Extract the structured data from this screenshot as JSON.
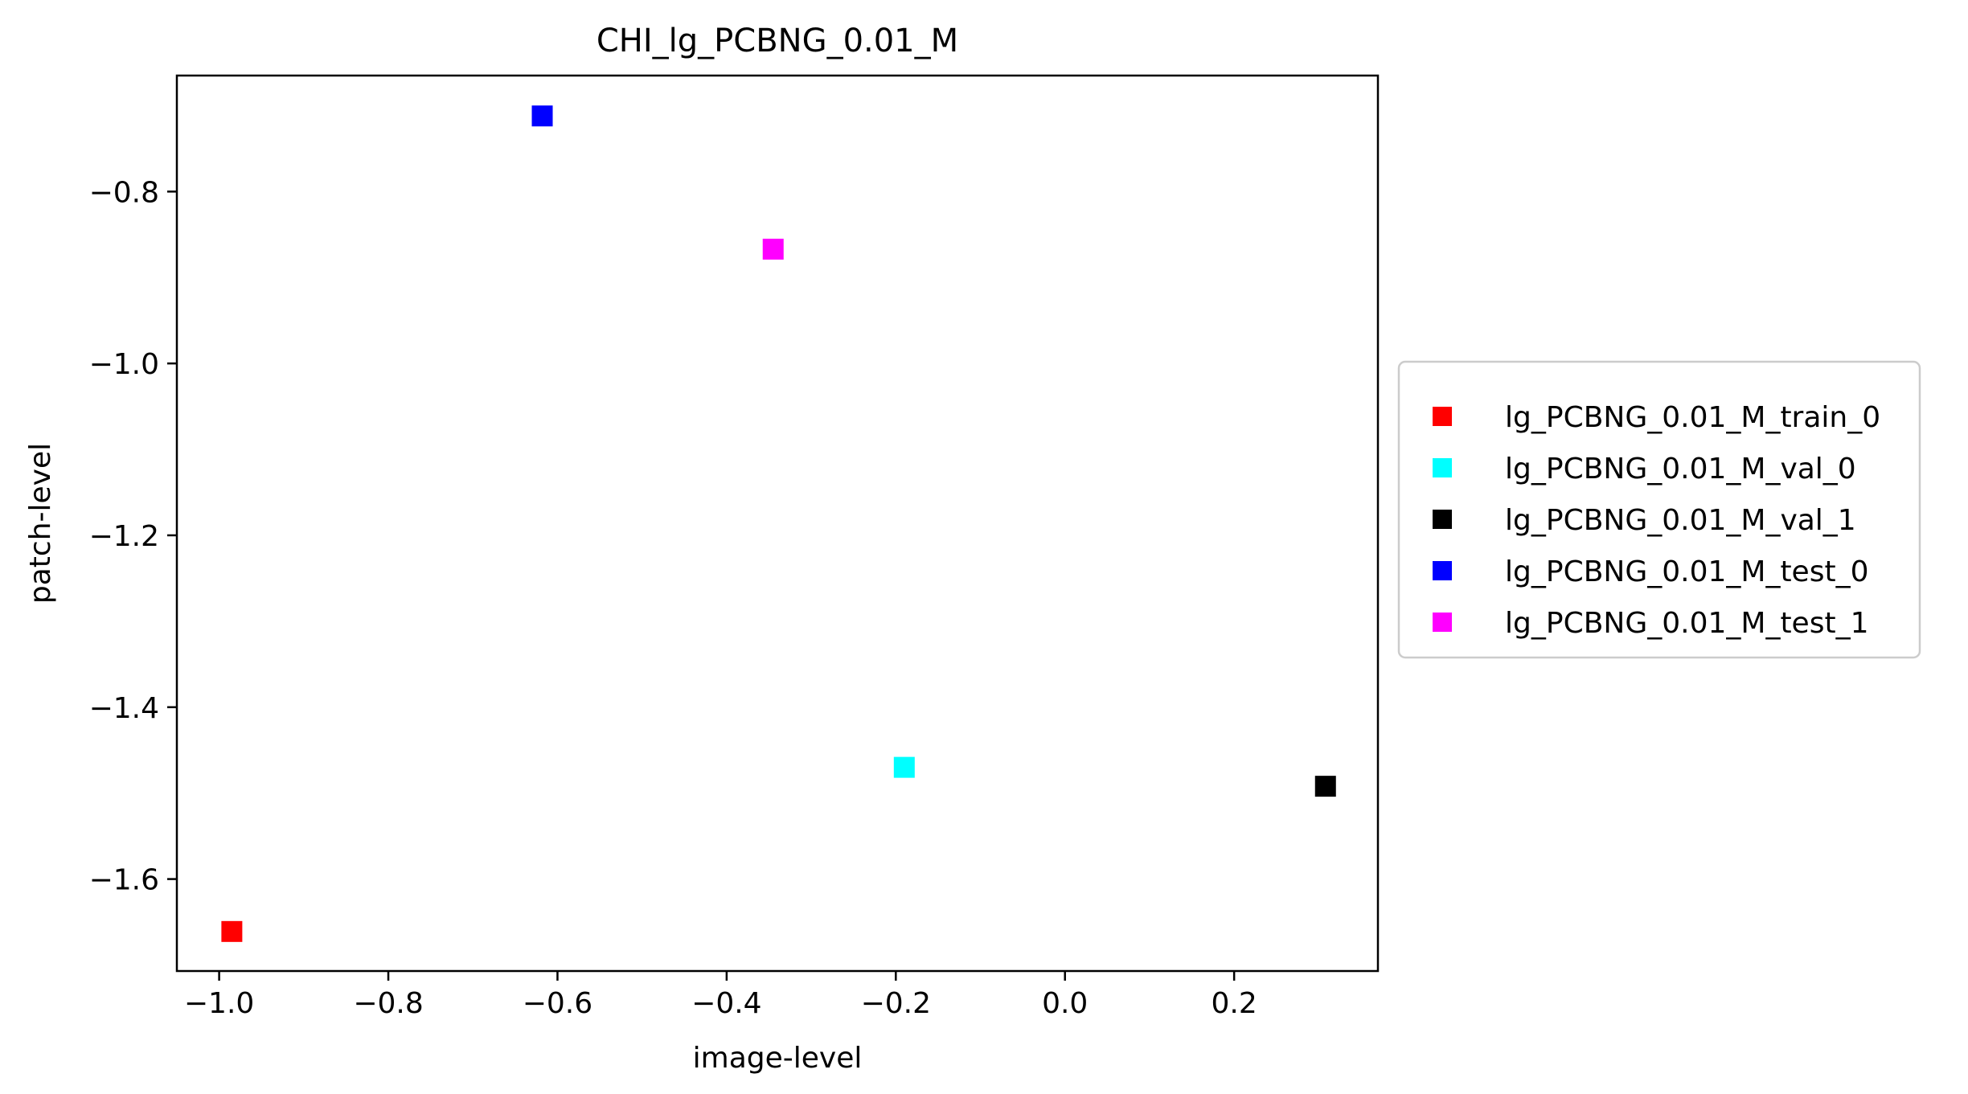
{
  "chart_data": {
    "type": "scatter",
    "title": "CHI_lg_PCBNG_0.01_M",
    "xlabel": "image-level",
    "ylabel": "patch-level",
    "xlim": [
      -1.05,
      0.37
    ],
    "ylim": [
      -1.707,
      -0.665
    ],
    "xticks": [
      -1.0,
      -0.8,
      -0.6,
      -0.4,
      -0.2,
      0.0,
      0.2
    ],
    "xtick_labels": [
      "−1.0",
      "−0.8",
      "−0.6",
      "−0.4",
      "−0.2",
      "0.0",
      "0.2"
    ],
    "yticks": [
      -1.6,
      -1.4,
      -1.2,
      -1.0,
      -0.8
    ],
    "ytick_labels": [
      "−1.6",
      "−1.4",
      "−1.2",
      "−1.0",
      "−0.8"
    ],
    "grid": false,
    "legend_placement": "outside-right",
    "marker": "square",
    "series": [
      {
        "name": "lg_PCBNG_0.01_M_train_0",
        "color": "#ff0000",
        "x": -0.985,
        "y": -1.661
      },
      {
        "name": "lg_PCBNG_0.01_M_val_0",
        "color": "#00ffff",
        "x": -0.19,
        "y": -1.47
      },
      {
        "name": "lg_PCBNG_0.01_M_val_1",
        "color": "#000000",
        "x": 0.308,
        "y": -1.492
      },
      {
        "name": "lg_PCBNG_0.01_M_test_0",
        "color": "#0000ff",
        "x": -0.618,
        "y": -0.712
      },
      {
        "name": "lg_PCBNG_0.01_M_test_1",
        "color": "#ff00ff",
        "x": -0.345,
        "y": -0.867
      }
    ]
  }
}
